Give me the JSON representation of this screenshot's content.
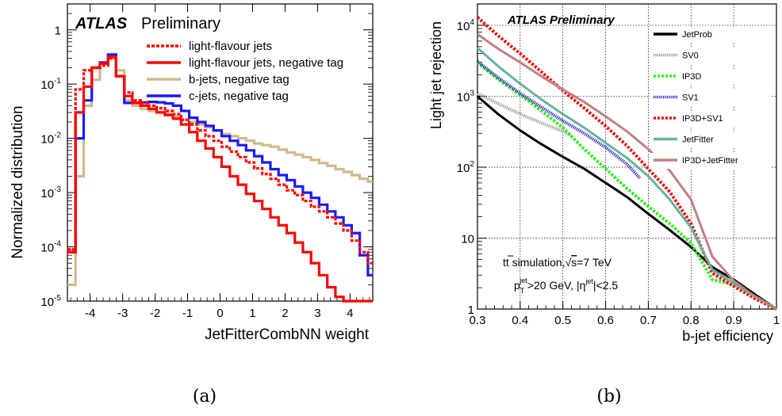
{
  "chart_data": [
    {
      "type": "line",
      "step": true,
      "title": "ATLAS Preliminary",
      "title_bold": "ATLAS",
      "title_rest": "Preliminary",
      "caption": "(a)",
      "xlabel": "JetFitterCombNN weight",
      "ylabel": "Normalized distribution",
      "xlim": [
        -4.7,
        4.7
      ],
      "ylim": [
        1e-05,
        3
      ],
      "yscale": "log",
      "x_ticks": [
        "-4",
        "-3",
        "-2",
        "-1",
        "0",
        "1",
        "2",
        "3",
        "4"
      ],
      "y_ticks": [
        {
          "base": "10",
          "exp": "-5",
          "value": 1e-05
        },
        {
          "base": "10",
          "exp": "-4",
          "value": 0.0001
        },
        {
          "base": "10",
          "exp": "-3",
          "value": 0.001
        },
        {
          "base": "10",
          "exp": "-2",
          "value": 0.01
        },
        {
          "base": "10",
          "exp": "-1",
          "value": 0.1
        },
        {
          "base": "1",
          "exp": "",
          "value": 1
        }
      ],
      "legend_position": "top-right",
      "bin_edges": [
        -4.7,
        -4.45,
        -4.2,
        -3.95,
        -3.7,
        -3.45,
        -3.2,
        -2.95,
        -2.7,
        -2.45,
        -2.2,
        -1.95,
        -1.7,
        -1.45,
        -1.2,
        -0.95,
        -0.7,
        -0.45,
        -0.2,
        0.05,
        0.3,
        0.55,
        0.8,
        1.05,
        1.3,
        1.55,
        1.8,
        2.05,
        2.3,
        2.55,
        2.8,
        3.05,
        3.3,
        3.55,
        3.8,
        4.05,
        4.3,
        4.55,
        4.7
      ],
      "series": [
        {
          "name": "b-jets, negative tag",
          "color": "#d2b98c",
          "style": "solid",
          "values": [
            2e-05,
            0.002,
            0.04,
            0.12,
            0.24,
            0.3,
            0.18,
            0.05,
            0.04,
            0.035,
            0.032,
            0.03,
            0.028,
            0.025,
            0.022,
            0.02,
            0.018,
            0.016,
            0.014,
            0.012,
            0.011,
            0.01,
            0.009,
            0.008,
            0.0075,
            0.007,
            0.0062,
            0.0055,
            0.005,
            0.0045,
            0.004,
            0.0035,
            0.0031,
            0.0027,
            0.0024,
            0.0021,
            0.0018,
            0.0016
          ]
        },
        {
          "name": "c-jets, negative tag",
          "color": "#1a1aff",
          "style": "solid",
          "values": [
            8e-05,
            0.01,
            0.05,
            0.2,
            0.25,
            0.35,
            0.14,
            0.045,
            0.045,
            0.046,
            0.047,
            0.046,
            0.044,
            0.04,
            0.032,
            0.024,
            0.02,
            0.017,
            0.014,
            0.011,
            0.009,
            0.0075,
            0.006,
            0.0047,
            0.0036,
            0.0027,
            0.0021,
            0.0017,
            0.0013,
            0.001,
            0.0008,
            0.0006,
            0.00045,
            0.00035,
            0.00025,
            0.00018,
            7e-05,
            3e-05
          ]
        },
        {
          "name": "light-flavour jets",
          "color": "#ff0000",
          "style": "dashed",
          "values": [
            9e-05,
            0.08,
            0.18,
            0.2,
            0.22,
            0.3,
            0.14,
            0.07,
            0.05,
            0.045,
            0.04,
            0.036,
            0.032,
            0.028,
            0.022,
            0.018,
            0.014,
            0.011,
            0.009,
            0.007,
            0.0057,
            0.0045,
            0.0036,
            0.0028,
            0.0022,
            0.0018,
            0.0014,
            0.0011,
            0.0009,
            0.0007,
            0.00055,
            0.00045,
            0.00035,
            0.00027,
            0.0002,
            0.00013,
            8e-05,
            5e-05
          ]
        },
        {
          "name": "light-flavour jets, negative tag",
          "color": "#ff0000",
          "style": "solid",
          "values": [
            8e-05,
            0.03,
            0.09,
            0.2,
            0.24,
            0.32,
            0.14,
            0.06,
            0.045,
            0.04,
            0.035,
            0.03,
            0.027,
            0.023,
            0.018,
            0.013,
            0.009,
            0.0065,
            0.0045,
            0.003,
            0.002,
            0.0014,
            0.00095,
            0.0007,
            0.0005,
            0.00035,
            0.00025,
            0.00018,
            0.00012,
            8e-05,
            5e-05,
            3e-05,
            1.8e-05,
            1.2e-05,
            1e-05,
            1e-05,
            1e-05,
            1e-05
          ]
        }
      ]
    },
    {
      "type": "line",
      "title": "ATLAS Preliminary",
      "caption": "(b)",
      "xlabel": "b-jet efficiency",
      "ylabel": "Light jet rejection",
      "xlim": [
        0.3,
        1.0
      ],
      "ylim": [
        1,
        20000
      ],
      "yscale": "log",
      "grid": true,
      "x_ticks": [
        "0.3",
        "0.4",
        "0.5",
        "0.6",
        "0.7",
        "0.8",
        "0.9",
        "1"
      ],
      "y_ticks": [
        {
          "base": "1",
          "exp": "",
          "value": 1
        },
        {
          "base": "10",
          "exp": "",
          "value": 10
        },
        {
          "base": "10",
          "exp": "2",
          "value": 100
        },
        {
          "base": "10",
          "exp": "3",
          "value": 1000
        },
        {
          "base": "10",
          "exp": "4",
          "value": 10000
        }
      ],
      "legend_position": "top-right",
      "annotation_main": "tt̄ simulation,√s=7 TeV",
      "annotation_cut": "p_T^jet>20 GeV, |η^jet|<2.5",
      "annot_line1": {
        "a": "t",
        "b": "t",
        "c": " simulation,",
        "d": "√",
        "e": "s",
        "f": "=7 TeV"
      },
      "annot_line2": {
        "a": "p",
        "b": "T",
        "c": "jet",
        "d": ">20 GeV, |η",
        "e": "jet",
        "f": "|<2.5"
      },
      "series": [
        {
          "name": "JetProb",
          "color": "#000000",
          "style": "solid",
          "x": [
            0.3,
            0.35,
            0.4,
            0.45,
            0.5,
            0.55,
            0.6,
            0.65,
            0.7,
            0.75,
            0.8,
            0.85,
            0.9,
            0.95,
            1.0
          ],
          "values": [
            1000,
            550,
            330,
            210,
            140,
            95,
            60,
            38,
            22,
            13,
            7.5,
            3.9,
            2.6,
            1.6,
            1.0
          ]
        },
        {
          "name": "SV0",
          "color": "#999999",
          "style": "dotted",
          "x": [
            0.3,
            0.35,
            0.4,
            0.45,
            0.5,
            0.52
          ],
          "values": [
            1100,
            780,
            560,
            420,
            320,
            280
          ]
        },
        {
          "name": "IP3D",
          "color": "#33ee22",
          "style": "dashed",
          "x": [
            0.3,
            0.35,
            0.4,
            0.45,
            0.5,
            0.55,
            0.6,
            0.65,
            0.7,
            0.75,
            0.8,
            0.85,
            0.9,
            0.95,
            1.0
          ],
          "values": [
            3000,
            1700,
            1050,
            620,
            360,
            180,
            95,
            50,
            28,
            16,
            8.5,
            2.6,
            2.2,
            1.5,
            1.0
          ]
        },
        {
          "name": "SV1",
          "color": "#2222bb",
          "style": "dotted",
          "x": [
            0.3,
            0.35,
            0.4,
            0.45,
            0.5,
            0.55,
            0.6,
            0.65,
            0.68
          ],
          "values": [
            3100,
            1800,
            1100,
            700,
            450,
            300,
            190,
            110,
            70
          ]
        },
        {
          "name": "IP3D+SV1",
          "color": "#ee1111",
          "style": "dashed",
          "x": [
            0.3,
            0.35,
            0.4,
            0.45,
            0.5,
            0.55,
            0.6,
            0.65,
            0.7,
            0.75,
            0.8,
            0.85,
            0.9,
            0.95,
            1.0
          ],
          "values": [
            13000,
            7000,
            4000,
            2200,
            1200,
            680,
            380,
            200,
            95,
            45,
            16,
            3.2,
            2.1,
            1.4,
            1.0
          ]
        },
        {
          "name": "JetFitter",
          "color": "#66b2a0",
          "style": "solid",
          "x": [
            0.3,
            0.35,
            0.4,
            0.45,
            0.5,
            0.55,
            0.6,
            0.65,
            0.7,
            0.75,
            0.8,
            0.85,
            0.9,
            0.95,
            1.0
          ],
          "values": [
            4800,
            2600,
            1500,
            900,
            560,
            360,
            220,
            135,
            75,
            35,
            14,
            3.6,
            2.3,
            1.5,
            1.0
          ]
        },
        {
          "name": "IP3D+JetFitter",
          "color": "#c08080",
          "style": "solid",
          "x": [
            0.3,
            0.35,
            0.4,
            0.45,
            0.5,
            0.55,
            0.6,
            0.65,
            0.7,
            0.75,
            0.8,
            0.85,
            0.9,
            0.95,
            1.0
          ],
          "values": [
            7500,
            4600,
            3000,
            1900,
            1250,
            830,
            520,
            320,
            180,
            90,
            35,
            5.5,
            2.5,
            1.5,
            1.0
          ]
        }
      ]
    }
  ]
}
